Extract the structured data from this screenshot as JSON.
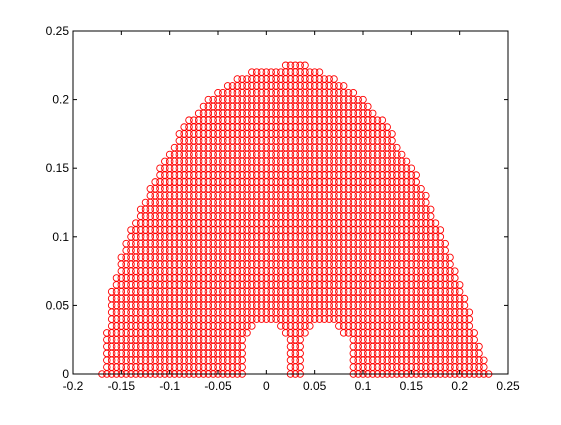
{
  "chart_data": {
    "type": "scatter",
    "title": "",
    "xlabel": "",
    "ylabel": "",
    "xlim": [
      -0.2,
      0.25
    ],
    "ylim": [
      0,
      0.25
    ],
    "x_ticks": [
      -0.2,
      -0.15,
      -0.1,
      -0.05,
      0,
      0.05,
      0.1,
      0.15,
      0.2,
      0.25
    ],
    "x_tick_labels": [
      "-0.2",
      "-0.15",
      "-0.1",
      "-0.05",
      "0",
      "0.05",
      "0.1",
      "0.15",
      "0.2",
      "0.25"
    ],
    "y_ticks": [
      0,
      0.05,
      0.1,
      0.15,
      0.2,
      0.25
    ],
    "y_tick_labels": [
      "0",
      "0.05",
      "0.1",
      "0.15",
      "0.2",
      "0.25"
    ],
    "grid": false,
    "legend": "none",
    "marker": "circle",
    "marker_color": "#ff0000",
    "series": [
      {
        "grid_step": 0.005,
        "region": {
          "x_range": [
            -0.17,
            0.23
          ],
          "y_range": [
            0,
            0.225
          ],
          "upper_boundary": [
            [
              -0.17,
              0.0
            ],
            [
              -0.165,
              0.03
            ],
            [
              -0.16,
              0.062
            ],
            [
              -0.15,
              0.085
            ],
            [
              -0.14,
              0.105
            ],
            [
              -0.13,
              0.122
            ],
            [
              -0.12,
              0.137
            ],
            [
              -0.11,
              0.152
            ],
            [
              -0.1,
              0.164
            ],
            [
              -0.09,
              0.175
            ],
            [
              -0.08,
              0.185
            ],
            [
              -0.07,
              0.193
            ],
            [
              -0.06,
              0.2
            ],
            [
              -0.05,
              0.207
            ],
            [
              -0.04,
              0.212
            ],
            [
              -0.03,
              0.216
            ],
            [
              -0.02,
              0.219
            ],
            [
              -0.01,
              0.221
            ],
            [
              0.0,
              0.222
            ],
            [
              0.01,
              0.223
            ],
            [
              0.02,
              0.225
            ],
            [
              0.03,
              0.225
            ],
            [
              0.04,
              0.225
            ],
            [
              0.05,
              0.222
            ],
            [
              0.06,
              0.219
            ],
            [
              0.07,
              0.216
            ],
            [
              0.08,
              0.212
            ],
            [
              0.09,
              0.207
            ],
            [
              0.1,
              0.2
            ],
            [
              0.11,
              0.193
            ],
            [
              0.12,
              0.185
            ],
            [
              0.13,
              0.175
            ],
            [
              0.14,
              0.164
            ],
            [
              0.15,
              0.152
            ],
            [
              0.16,
              0.138
            ],
            [
              0.17,
              0.122
            ],
            [
              0.18,
              0.106
            ],
            [
              0.19,
              0.088
            ],
            [
              0.2,
              0.068
            ],
            [
              0.21,
              0.045
            ],
            [
              0.22,
              0.022
            ],
            [
              0.23,
              0.0
            ]
          ],
          "holes": [
            {
              "x_range": [
                -0.025,
                0.09
              ],
              "top_boundary": [
                [
                  -0.025,
                  0.022
                ],
                [
                  -0.015,
                  0.034
                ],
                [
                  -0.005,
                  0.038
                ],
                [
                  0.005,
                  0.038
                ],
                [
                  0.015,
                  0.034
                ],
                [
                  0.025,
                  0.026
                ],
                [
                  0.035,
                  0.026
                ],
                [
                  0.045,
                  0.034
                ],
                [
                  0.055,
                  0.038
                ],
                [
                  0.065,
                  0.038
                ],
                [
                  0.075,
                  0.034
                ],
                [
                  0.085,
                  0.026
                ],
                [
                  0.09,
                  0.022
                ]
              ],
              "stem": {
                "x": [
                  0.025,
                  0.035
                ],
                "bottom": 0.0
              }
            }
          ]
        }
      }
    ]
  }
}
